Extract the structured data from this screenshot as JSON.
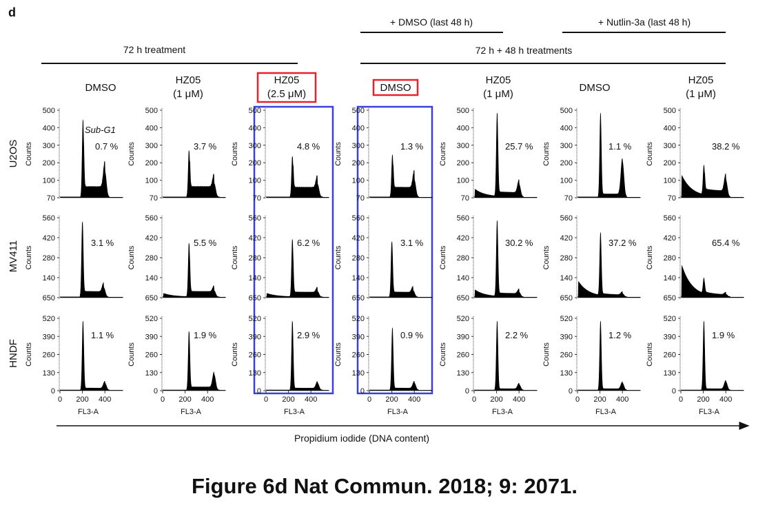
{
  "panel_letter": "d",
  "groups": {
    "left_header": "72 h treatment",
    "right_header": "72 h + 48 h treatments",
    "dmso_48": "+ DMSO (last 48 h)",
    "nutlin_48": "+ Nutlin-3a (last 48 h)"
  },
  "caption": "Figure 6d Nat Commun. 2018; 9: 2071.",
  "highlight_colors": {
    "red_box": "#e8202a",
    "blue_box": "#3a3fd8"
  },
  "chart_data": {
    "type": "histogram-grid",
    "x_axis_label": "FL3-A",
    "y_axis_label": "Counts",
    "x_ticks": [
      "0",
      "200",
      "400"
    ],
    "overall_axis_label": "Propidium iodide (DNA content)",
    "sub_g1_annotation": "Sub-G1",
    "columns": [
      {
        "line1": "DMSO",
        "line2": "",
        "red_box": false,
        "blue_box": false
      },
      {
        "line1": "HZ05",
        "line2": "(1 μM)",
        "red_box": false,
        "blue_box": false
      },
      {
        "line1": "HZ05",
        "line2": "(2.5 μM)",
        "red_box": true,
        "blue_box": true
      },
      {
        "line1": "DMSO",
        "line2": "",
        "red_box": true,
        "blue_box": true
      },
      {
        "line1": "HZ05",
        "line2": "(1 μM)",
        "red_box": false,
        "blue_box": false
      },
      {
        "line1": "DMSO",
        "line2": "",
        "red_box": false,
        "blue_box": false
      },
      {
        "line1": "HZ05",
        "line2": "(1 μM)",
        "red_box": false,
        "blue_box": false
      }
    ],
    "rows": [
      {
        "cell_line": "U2OS",
        "y_ticks": [
          "500",
          "400",
          "300",
          "200",
          "100",
          "70"
        ],
        "sub_g1_percent": [
          "0.7 %",
          "3.7 %",
          "4.8 %",
          "1.3 %",
          "25.7 %",
          "1.1 %",
          "38.2 %"
        ],
        "relative_shape": [
          {
            "g1_pos": 205,
            "g1": 0.92,
            "s": 0.14,
            "g2": 0.3,
            "sub": 0.0
          },
          {
            "g1_pos": 235,
            "g1": 0.55,
            "s": 0.14,
            "g2": 0.16,
            "sub": 0.03
          },
          {
            "g1_pos": 235,
            "g1": 0.48,
            "s": 0.13,
            "g2": 0.15,
            "sub": 0.04
          },
          {
            "g1_pos": 205,
            "g1": 0.5,
            "s": 0.13,
            "g2": 0.2,
            "sub": 0.02
          },
          {
            "g1_pos": 205,
            "g1": 1.0,
            "s": 0.06,
            "g2": 0.15,
            "sub": 0.1
          },
          {
            "g1_pos": 205,
            "g1": 1.0,
            "s": 0.04,
            "g2": 0.42,
            "sub": 0.01
          },
          {
            "g1_pos": 205,
            "g1": 0.35,
            "s": 0.08,
            "g2": 0.2,
            "sub": 0.28
          }
        ]
      },
      {
        "cell_line": "MV411",
        "y_ticks": [
          "560",
          "420",
          "280",
          "140",
          "650"
        ],
        "sub_g1_percent": [
          "3.1 %",
          "5.5 %",
          "6.2 %",
          "3.1 %",
          "30.2 %",
          "37.2 %",
          "65.4 %"
        ],
        "relative_shape": [
          {
            "g1_pos": 200,
            "g1": 0.98,
            "s": 0.08,
            "g2": 0.12,
            "sub": 0.03
          },
          {
            "g1_pos": 235,
            "g1": 0.7,
            "s": 0.08,
            "g2": 0.08,
            "sub": 0.05
          },
          {
            "g1_pos": 235,
            "g1": 0.75,
            "s": 0.07,
            "g2": 0.07,
            "sub": 0.05
          },
          {
            "g1_pos": 200,
            "g1": 0.72,
            "s": 0.07,
            "g2": 0.08,
            "sub": 0.03
          },
          {
            "g1_pos": 205,
            "g1": 1.0,
            "s": 0.05,
            "g2": 0.06,
            "sub": 0.1
          },
          {
            "g1_pos": 205,
            "g1": 0.82,
            "s": 0.03,
            "g2": 0.04,
            "sub": 0.22
          },
          {
            "g1_pos": 205,
            "g1": 0.2,
            "s": 0.03,
            "g2": 0.03,
            "sub": 0.45
          }
        ]
      },
      {
        "cell_line": "HNDF",
        "y_ticks": [
          "520",
          "390",
          "260",
          "130",
          "0"
        ],
        "sub_g1_percent": [
          "1.1 %",
          "1.9 %",
          "2.9 %",
          "0.9 %",
          "2.2 %",
          "1.2 %",
          "1.9 %"
        ],
        "relative_shape": [
          {
            "g1_pos": 205,
            "g1": 1.0,
            "s": 0.03,
            "g2": 0.1,
            "sub": 0.02
          },
          {
            "g1_pos": 235,
            "g1": 0.85,
            "s": 0.05,
            "g2": 0.22,
            "sub": 0.02
          },
          {
            "g1_pos": 235,
            "g1": 1.0,
            "s": 0.03,
            "g2": 0.1,
            "sub": 0.02
          },
          {
            "g1_pos": 205,
            "g1": 0.9,
            "s": 0.03,
            "g2": 0.1,
            "sub": 0.02
          },
          {
            "g1_pos": 205,
            "g1": 1.0,
            "s": 0.02,
            "g2": 0.08,
            "sub": 0.01
          },
          {
            "g1_pos": 205,
            "g1": 1.0,
            "s": 0.02,
            "g2": 0.1,
            "sub": 0.01
          },
          {
            "g1_pos": 205,
            "g1": 1.0,
            "s": 0.02,
            "g2": 0.12,
            "sub": 0.01
          }
        ]
      }
    ]
  }
}
